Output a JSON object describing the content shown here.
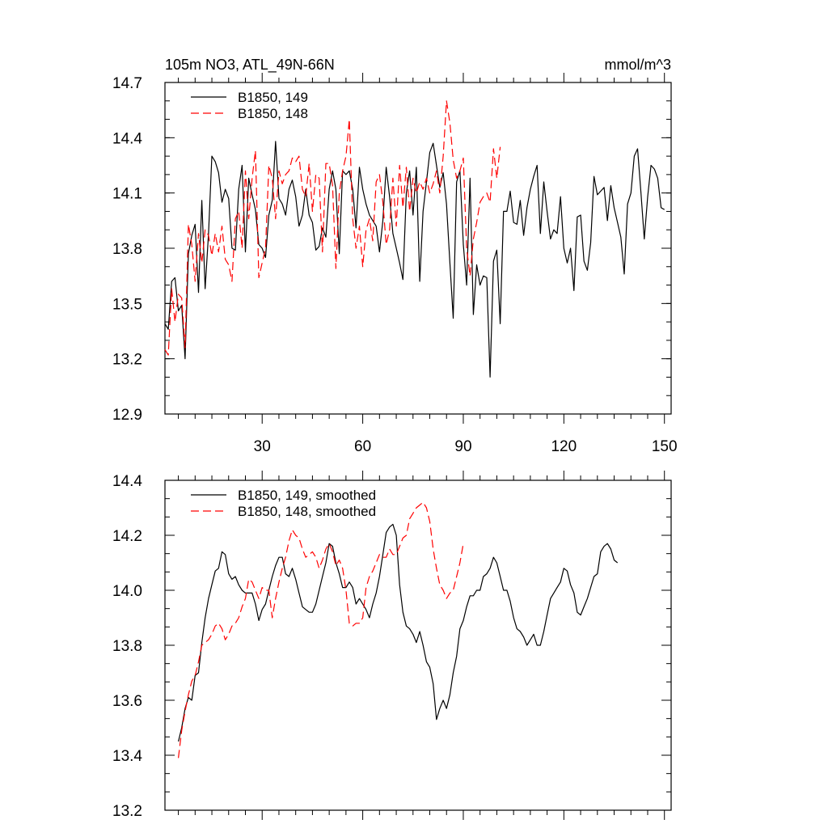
{
  "chart_data": [
    {
      "type": "line",
      "title": "105m NO3, ATL_49N-66N",
      "units_label": "mmol/m^3",
      "xlabel": "",
      "ylabel": "",
      "xlim": [
        1,
        152
      ],
      "ylim": [
        12.9,
        14.7
      ],
      "xticks": [
        30,
        60,
        90,
        120,
        150
      ],
      "xtick_labels": [
        "30",
        "60",
        "90",
        "120",
        "150"
      ],
      "yticks": [
        12.9,
        13.2,
        13.5,
        13.8,
        14.1,
        14.4,
        14.7
      ],
      "ytick_labels": [
        "12.9",
        "13.2",
        "13.5",
        "13.8",
        "14.1",
        "14.4",
        "14.7"
      ],
      "legend": {
        "position": "top-left"
      },
      "series": [
        {
          "name": "B1850, 149",
          "color": "#000000",
          "dash": "solid",
          "x_start": 1,
          "values": [
            13.39,
            13.36,
            13.62,
            13.64,
            13.46,
            13.49,
            13.2,
            13.77,
            13.87,
            13.93,
            13.56,
            14.06,
            13.58,
            13.88,
            14.3,
            14.27,
            14.21,
            14.05,
            14.12,
            14.07,
            13.8,
            13.79,
            14.12,
            14.25,
            13.78,
            14.18,
            14.09,
            14.01,
            13.82,
            13.8,
            13.75,
            13.98,
            14.06,
            14.38,
            14.07,
            14.04,
            13.98,
            14.12,
            14.17,
            14.08,
            13.92,
            13.98,
            14.12,
            13.98,
            13.94,
            13.79,
            13.81,
            13.91,
            13.86,
            14.12,
            14.22,
            14.12,
            13.77,
            14.22,
            14.2,
            14.22,
            14.12,
            13.91,
            14.24,
            14.12,
            14.04,
            13.98,
            13.95,
            13.92,
            13.78,
            13.95,
            14.24,
            14.08,
            13.88,
            13.8,
            13.72,
            13.63,
            14.1,
            14.22,
            13.98,
            14.24,
            13.62,
            14.0,
            14.16,
            14.32,
            14.37,
            14.25,
            14.13,
            14.21,
            14.04,
            13.72,
            13.42,
            14.16,
            14.22,
            13.82,
            13.6,
            14.18,
            13.44,
            13.71,
            13.6,
            13.65,
            13.64,
            13.1,
            13.73,
            13.79,
            13.39,
            14.0,
            14.0,
            14.11,
            13.94,
            13.93,
            14.06,
            13.87,
            14.02,
            14.12,
            14.19,
            14.25,
            13.88,
            14.16,
            14.0,
            13.85,
            13.9,
            13.88,
            14.08,
            13.8,
            13.72,
            13.8,
            13.57,
            13.97,
            13.98,
            13.73,
            13.68,
            13.83,
            14.19,
            14.09,
            14.11,
            14.13,
            13.95,
            14.14,
            14.02,
            13.94,
            13.86,
            13.66,
            14.04,
            14.1,
            14.3,
            14.34,
            14.1,
            13.85,
            14.08,
            14.25,
            14.23,
            14.18,
            14.02,
            14.01
          ]
        },
        {
          "name": "B1850, 148",
          "color": "#ff0000",
          "dash": "dashed",
          "x_start": 1,
          "values": [
            13.25,
            13.22,
            13.58,
            13.4,
            13.55,
            13.53,
            13.26,
            13.93,
            13.82,
            13.62,
            13.88,
            13.72,
            13.9,
            13.87,
            13.76,
            13.88,
            13.78,
            13.92,
            13.74,
            13.71,
            13.62,
            13.96,
            14.0,
            13.8,
            14.22,
            13.96,
            14.18,
            14.33,
            13.64,
            13.72,
            13.8,
            14.25,
            14.18,
            13.96,
            14.22,
            14.15,
            14.2,
            14.22,
            14.29,
            14.27,
            14.3,
            14.12,
            14.08,
            14.26,
            14.0,
            14.2,
            14.18,
            13.78,
            14.26,
            14.26,
            14.14,
            13.69,
            14.1,
            14.22,
            14.3,
            14.5,
            13.96,
            13.8,
            13.92,
            13.7,
            13.9,
            13.96,
            13.84,
            14.16,
            14.2,
            14.05,
            13.82,
            13.9,
            14.18,
            13.92,
            14.25,
            14.02,
            14.24,
            14.0,
            14.18,
            14.1,
            14.16,
            14.12,
            14.18,
            14.1,
            14.15,
            14.22,
            14.1,
            14.3,
            14.6,
            14.48,
            14.28,
            14.18,
            14.22,
            14.29,
            13.8,
            13.65,
            13.85,
            13.94,
            14.05,
            14.08,
            14.1,
            14.05,
            14.34,
            14.18,
            14.35
          ]
        }
      ]
    },
    {
      "type": "line",
      "title": "",
      "xlabel": "",
      "ylabel": "",
      "xlim": [
        1,
        152
      ],
      "ylim": [
        13.2,
        14.4
      ],
      "xticks": [
        30,
        60,
        90,
        120,
        150
      ],
      "yticks": [
        13.2,
        13.4,
        13.6,
        13.8,
        14.0,
        14.2,
        14.4
      ],
      "ytick_labels": [
        "13.2",
        "13.4",
        "13.6",
        "13.8",
        "14.0",
        "14.2",
        "14.4"
      ],
      "legend": {
        "position": "top-left"
      },
      "series": [
        {
          "name": "B1850, 149, smoothed",
          "color": "#000000",
          "dash": "solid",
          "x_start": 5,
          "values": [
            13.45,
            13.5,
            13.57,
            13.61,
            13.6,
            13.69,
            13.7,
            13.81,
            13.9,
            13.97,
            14.02,
            14.07,
            14.08,
            14.14,
            14.13,
            14.06,
            14.04,
            14.05,
            14.02,
            14.0,
            13.99,
            13.99,
            13.99,
            13.95,
            13.89,
            13.93,
            13.95,
            14.0,
            14.05,
            14.09,
            14.12,
            14.12,
            14.06,
            14.05,
            14.08,
            14.04,
            13.99,
            13.94,
            13.93,
            13.92,
            13.92,
            13.95,
            14.0,
            14.05,
            14.1,
            14.17,
            14.16,
            14.1,
            14.06,
            14.01,
            14.01,
            14.03,
            14.01,
            13.95,
            13.97,
            13.95,
            13.93,
            13.9,
            13.95,
            13.99,
            14.05,
            14.13,
            14.21,
            14.23,
            14.24,
            14.2,
            14.02,
            13.92,
            13.87,
            13.86,
            13.84,
            13.81,
            13.85,
            13.8,
            13.74,
            13.72,
            13.66,
            13.53,
            13.57,
            13.6,
            13.57,
            13.62,
            13.7,
            13.76,
            13.86,
            13.89,
            13.94,
            13.98,
            13.98,
            14.0,
            14.0,
            14.05,
            14.06,
            14.08,
            14.12,
            14.1,
            14.05,
            14.0,
            14.0,
            13.96,
            13.9,
            13.86,
            13.85,
            13.83,
            13.8,
            13.82,
            13.84,
            13.8,
            13.8,
            13.85,
            13.91,
            13.97,
            13.99,
            14.01,
            14.03,
            14.08,
            14.07,
            14.02,
            13.99,
            13.92,
            13.91,
            13.94,
            13.97,
            14.01,
            14.05,
            14.06,
            14.14,
            14.16,
            14.17,
            14.15,
            14.11,
            14.1
          ]
        },
        {
          "name": "B1850, 148, smoothed",
          "color": "#ff0000",
          "dash": "dashed",
          "x_start": 5,
          "values": [
            13.39,
            13.49,
            13.56,
            13.62,
            13.67,
            13.69,
            13.74,
            13.8,
            13.81,
            13.82,
            13.84,
            13.87,
            13.88,
            13.86,
            13.82,
            13.84,
            13.87,
            13.88,
            13.9,
            13.94,
            13.97,
            14.04,
            14.03,
            14.0,
            13.97,
            14.01,
            14.0,
            14.0,
            13.9,
            13.97,
            14.03,
            14.08,
            14.12,
            14.18,
            14.22,
            14.2,
            14.19,
            14.15,
            14.12,
            14.13,
            14.14,
            14.12,
            14.08,
            14.11,
            14.15,
            14.17,
            14.14,
            14.09,
            14.11,
            14.08,
            14.0,
            13.88,
            13.87,
            13.88,
            13.88,
            13.9,
            14.01,
            14.05,
            14.07,
            14.1,
            14.13,
            14.12,
            14.12,
            14.15,
            14.13,
            14.13,
            14.16,
            14.19,
            14.2,
            14.26,
            14.28,
            14.3,
            14.31,
            14.32,
            14.3,
            14.25,
            14.15,
            14.08,
            14.02,
            14.0,
            13.97,
            13.99,
            14.0,
            14.05,
            14.1,
            14.17
          ]
        }
      ]
    }
  ]
}
